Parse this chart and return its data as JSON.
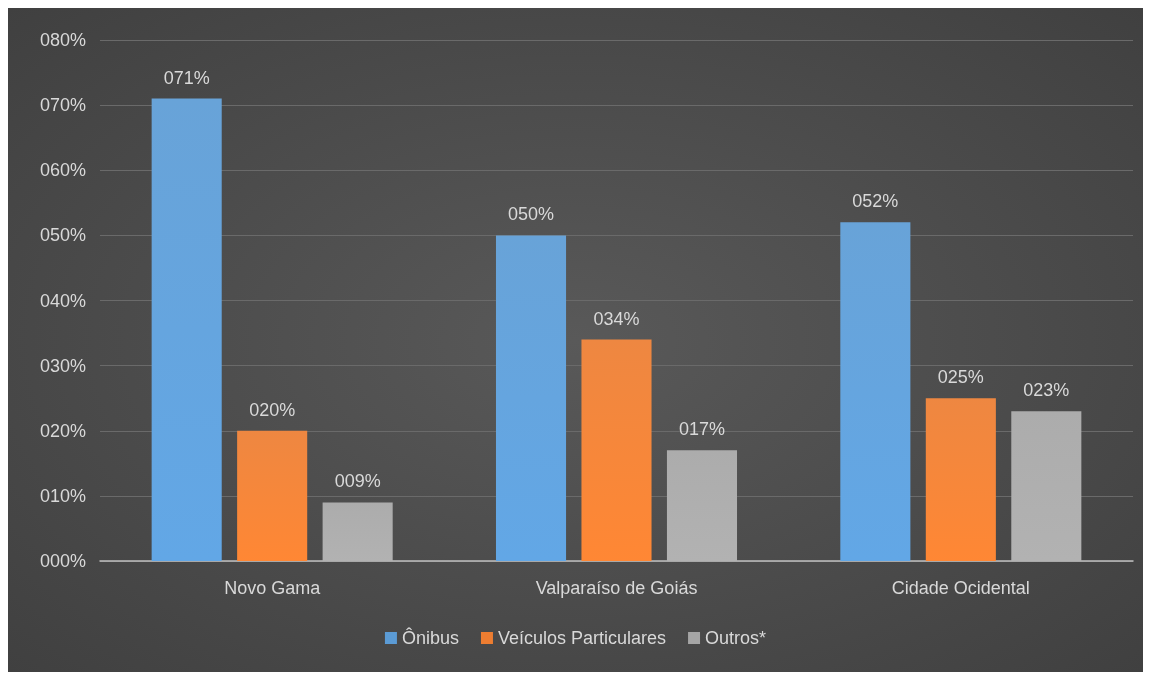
{
  "chart_data": {
    "type": "bar",
    "categories": [
      "Novo Gama",
      "Valparaíso de Goiás",
      "Cidade Ocidental"
    ],
    "series": [
      {
        "name": "Ônibus",
        "color": "#5b9bd5",
        "values": [
          71,
          50,
          52
        ],
        "value_labels": [
          "071%",
          "050%",
          "052%"
        ]
      },
      {
        "name": "Veículos Particulares",
        "color": "#ed7d31",
        "values": [
          20,
          34,
          25
        ],
        "value_labels": [
          "020%",
          "034%",
          "025%"
        ]
      },
      {
        "name": "Outros*",
        "color": "#a5a5a5",
        "values": [
          9,
          17,
          23
        ],
        "value_labels": [
          "009%",
          "017%",
          "023%"
        ]
      }
    ],
    "ylim": [
      0,
      80
    ],
    "yticks": [
      {
        "value": 0,
        "label": "000%"
      },
      {
        "value": 10,
        "label": "010%"
      },
      {
        "value": 20,
        "label": "020%"
      },
      {
        "value": 30,
        "label": "030%"
      },
      {
        "value": 40,
        "label": "040%"
      },
      {
        "value": 50,
        "label": "050%"
      },
      {
        "value": 60,
        "label": "060%"
      },
      {
        "value": 70,
        "label": "070%"
      },
      {
        "value": 80,
        "label": "080%"
      }
    ],
    "grid": "y",
    "legend": "bottom"
  }
}
